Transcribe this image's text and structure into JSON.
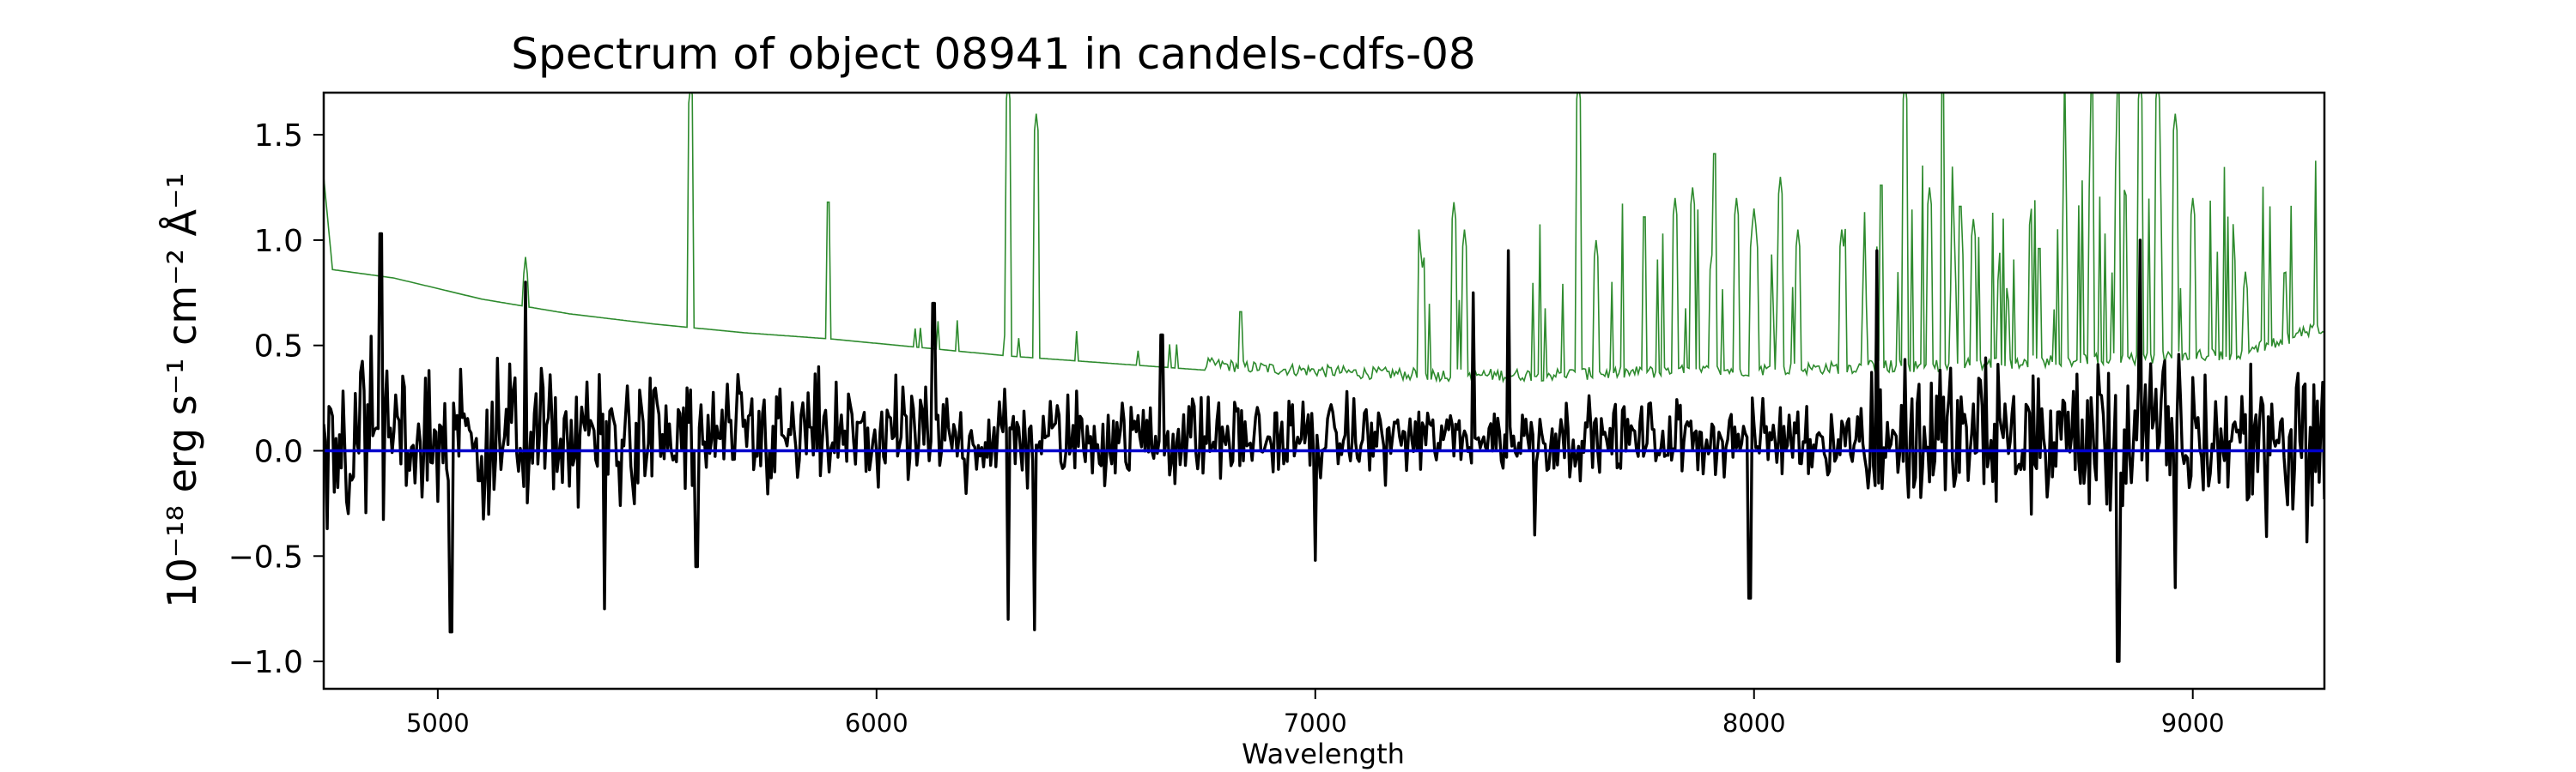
{
  "chart_data": {
    "type": "line",
    "title": "Spectrum of object 08941 in candels-cdfs-08",
    "xlabel": "Wavelength",
    "ylabel": "10⁻¹⁸ erg s⁻¹ cm⁻² Å⁻¹",
    "xlim": [
      4740,
      9300
    ],
    "ylim": [
      -1.13,
      1.7
    ],
    "xticks": [
      5000,
      6000,
      7000,
      8000,
      9000
    ],
    "yticks": [
      -1.0,
      -0.5,
      0.0,
      0.5,
      1.0,
      1.5
    ],
    "ytick_labels": [
      "−1.0",
      "−0.5",
      "0.0",
      "0.5",
      "1.0",
      "1.5"
    ],
    "grid": false,
    "series": [
      {
        "role": "error",
        "color": "#2e8b2e",
        "style": "thin line",
        "continuum": [
          [
            4740,
            1.3
          ],
          [
            4760,
            0.86
          ],
          [
            4900,
            0.82
          ],
          [
            5100,
            0.72
          ],
          [
            5300,
            0.65
          ],
          [
            5500,
            0.6
          ],
          [
            5700,
            0.56
          ],
          [
            5900,
            0.53
          ],
          [
            6100,
            0.49
          ],
          [
            6300,
            0.45
          ],
          [
            6500,
            0.42
          ],
          [
            6700,
            0.39
          ],
          [
            6900,
            0.36
          ],
          [
            7100,
            0.34
          ],
          [
            7300,
            0.33
          ],
          [
            7500,
            0.33
          ],
          [
            7700,
            0.34
          ],
          [
            7900,
            0.35
          ],
          [
            8100,
            0.36
          ],
          [
            8300,
            0.37
          ],
          [
            8500,
            0.38
          ],
          [
            8700,
            0.4
          ],
          [
            8900,
            0.41
          ],
          [
            9100,
            0.43
          ],
          [
            9300,
            0.56
          ]
        ],
        "features": [
          [
            5200,
            0.92
          ],
          [
            5577,
            1.75
          ],
          [
            5890,
            1.22
          ],
          [
            6300,
            1.75
          ],
          [
            6364,
            1.6
          ],
          [
            6830,
            0.7
          ],
          [
            7240,
            0.95
          ],
          [
            7316,
            1.18
          ],
          [
            7340,
            1.05
          ],
          [
            7600,
            1.75
          ],
          [
            7640,
            1.0
          ],
          [
            7750,
            1.15
          ],
          [
            7820,
            1.2
          ],
          [
            7860,
            1.25
          ],
          [
            7910,
            1.45
          ],
          [
            7960,
            1.2
          ],
          [
            8000,
            1.15
          ],
          [
            8060,
            1.3
          ],
          [
            8100,
            1.05
          ],
          [
            8200,
            1.05
          ],
          [
            8290,
            1.3
          ],
          [
            8344,
            1.75
          ],
          [
            8400,
            1.25
          ],
          [
            8430,
            1.75
          ],
          [
            8470,
            1.2
          ],
          [
            8500,
            1.1
          ],
          [
            8650,
            1.0
          ],
          [
            8770,
            1.75
          ],
          [
            8830,
            1.75
          ],
          [
            8880,
            1.75
          ],
          [
            8920,
            1.75
          ],
          [
            8960,
            1.6
          ],
          [
            9000,
            1.2
          ],
          [
            9120,
            0.85
          ]
        ]
      },
      {
        "role": "flux",
        "color": "#000000",
        "style": "thick line",
        "features": [
          [
            4870,
            1.03
          ],
          [
            5030,
            -0.86
          ],
          [
            5200,
            0.8
          ],
          [
            5380,
            -0.75
          ],
          [
            5590,
            -0.55
          ],
          [
            6130,
            0.7
          ],
          [
            6300,
            -0.8
          ],
          [
            6360,
            -0.85
          ],
          [
            6650,
            0.55
          ],
          [
            7000,
            -0.52
          ],
          [
            7360,
            0.75
          ],
          [
            7440,
            0.95
          ],
          [
            7500,
            -0.4
          ],
          [
            7990,
            -0.7
          ],
          [
            8280,
            0.95
          ],
          [
            8830,
            -1.0
          ],
          [
            8880,
            1.0
          ],
          [
            8960,
            -0.65
          ],
          [
            9300,
            -0.23
          ]
        ]
      },
      {
        "role": "zero",
        "color": "#0000cc",
        "style": "line",
        "points": [
          [
            4740,
            0.0
          ],
          [
            9300,
            0.0
          ]
        ]
      }
    ]
  }
}
